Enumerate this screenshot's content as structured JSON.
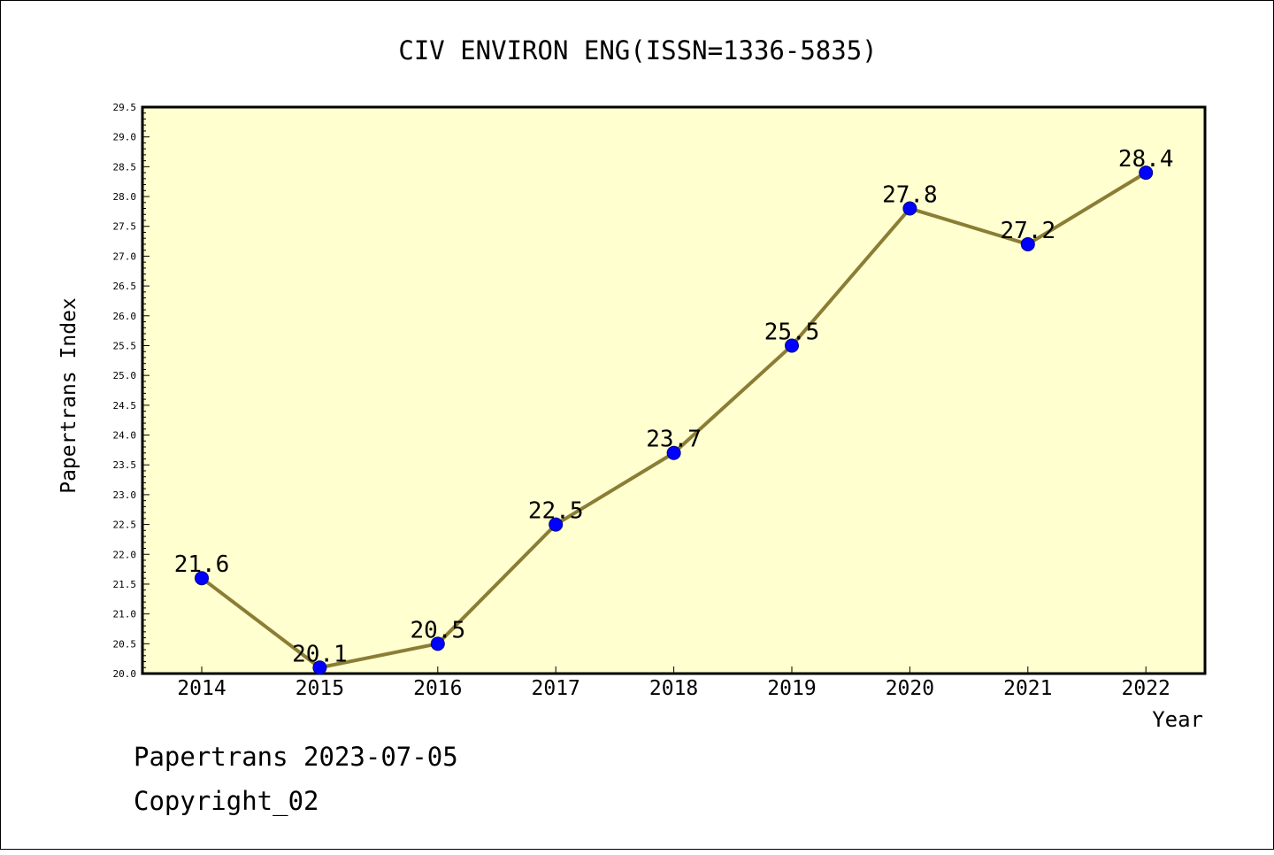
{
  "chart_data": {
    "type": "line",
    "title": "CIV ENVIRON ENG(ISSN=1336-5835)",
    "xlabel": "Year",
    "ylabel": "Papertrans Index",
    "categories": [
      "2014",
      "2015",
      "2016",
      "2017",
      "2018",
      "2019",
      "2020",
      "2021",
      "2022"
    ],
    "values": [
      21.6,
      20.1,
      20.5,
      22.5,
      23.7,
      25.5,
      27.8,
      27.2,
      28.4
    ],
    "data_labels": [
      "21.6",
      "20.1",
      "20.5",
      "22.5",
      "23.7",
      "25.5",
      "27.8",
      "27.2",
      "28.4"
    ],
    "ylim": [
      20.0,
      29.5
    ],
    "yticks": [
      "20.0",
      "20.5",
      "21.0",
      "21.5",
      "22.0",
      "22.5",
      "23.0",
      "23.5",
      "24.0",
      "24.5",
      "25.0",
      "25.5",
      "26.0",
      "26.5",
      "27.0",
      "27.5",
      "28.0",
      "28.5",
      "29.0",
      "29.5"
    ],
    "grid": false,
    "colors": {
      "plot_background": "#ffffd0",
      "line": "#8b7d35",
      "marker": "#0000ff",
      "marker_edge": "#00008b"
    }
  },
  "footer": {
    "line1": "Papertrans 2023-07-05",
    "line2": "Copyright_02"
  }
}
